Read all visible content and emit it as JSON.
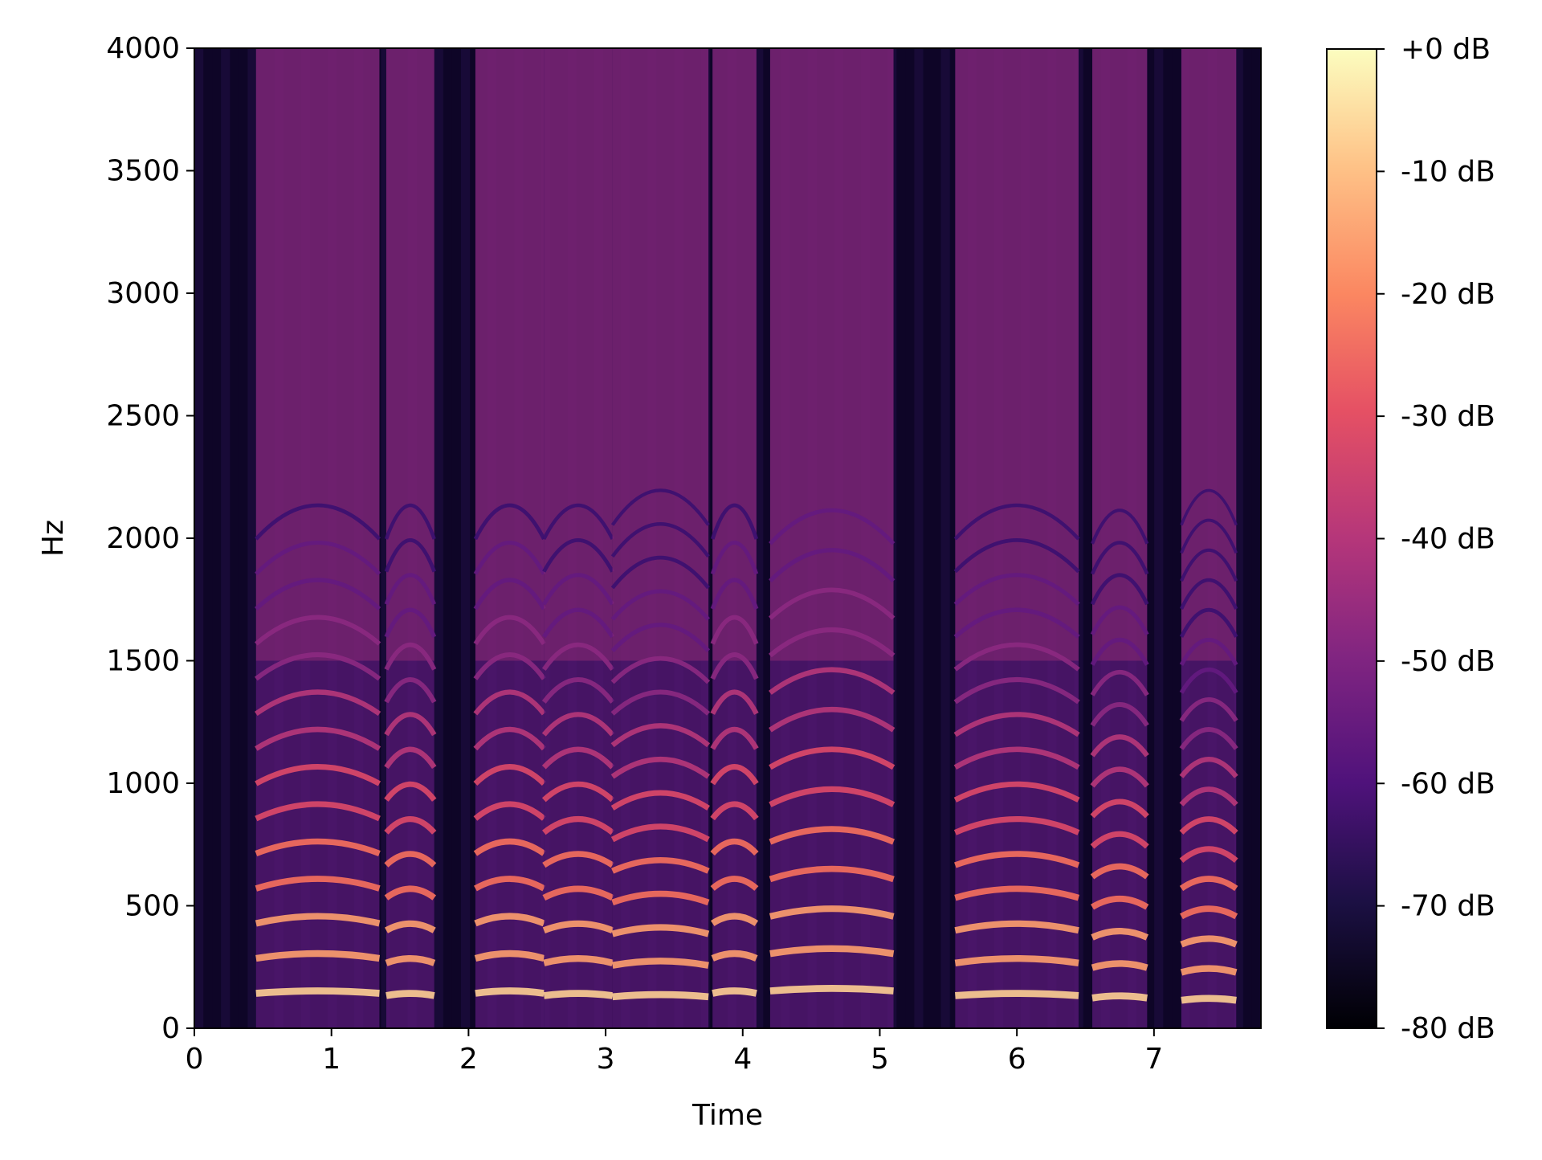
{
  "chart_data": {
    "type": "heatmap",
    "title": "",
    "xlabel": "Time",
    "ylabel": "Hz",
    "xlim": [
      0,
      7.78
    ],
    "ylim": [
      0,
      4000
    ],
    "x_ticks": [
      0,
      1,
      2,
      3,
      4,
      5,
      6,
      7
    ],
    "y_ticks": [
      0,
      500,
      1000,
      1500,
      2000,
      2500,
      3000,
      3500,
      4000
    ],
    "colormap": "magma",
    "colorbar": {
      "min": -80,
      "max": 0,
      "unit": "dB",
      "ticks": [
        "-80 dB",
        "-70 dB",
        "-60 dB",
        "-50 dB",
        "-40 dB",
        "-30 dB",
        "-20 dB",
        "-10 dB",
        "+0 dB"
      ],
      "tick_values": [
        -80,
        -70,
        -60,
        -50,
        -40,
        -30,
        -20,
        -10,
        0
      ]
    },
    "voiced_segments": [
      {
        "start": 0.45,
        "end": 1.35,
        "f0": 150
      },
      {
        "start": 1.4,
        "end": 1.75,
        "f0": 140
      },
      {
        "start": 2.05,
        "end": 2.55,
        "f0": 150
      },
      {
        "start": 2.55,
        "end": 3.05,
        "f0": 140
      },
      {
        "start": 3.05,
        "end": 3.75,
        "f0": 135
      },
      {
        "start": 3.78,
        "end": 4.1,
        "f0": 150
      },
      {
        "start": 4.2,
        "end": 5.1,
        "f0": 160
      },
      {
        "start": 5.55,
        "end": 6.45,
        "f0": 140
      },
      {
        "start": 6.55,
        "end": 6.95,
        "f0": 130
      },
      {
        "start": 7.2,
        "end": 7.6,
        "f0": 120
      }
    ],
    "grid": false,
    "legend": "none"
  }
}
